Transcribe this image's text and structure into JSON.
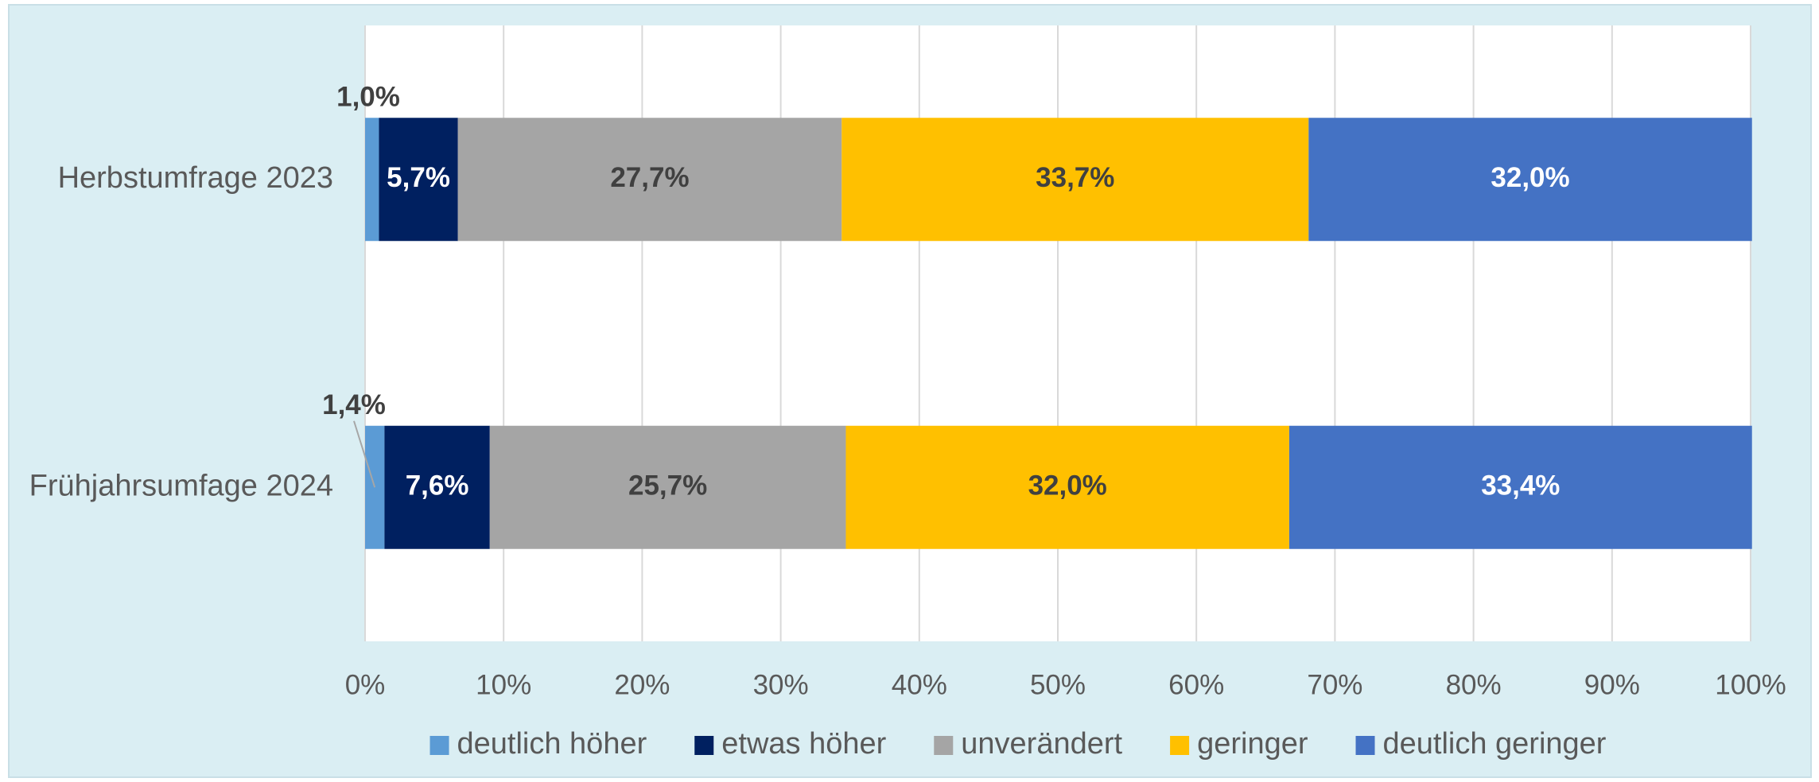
{
  "chart_data": {
    "type": "stacked-barh",
    "categories": [
      "Herbstumfrage 2023",
      "Frühjahrsumfage 2024"
    ],
    "series": [
      {
        "name": "deutlich höher",
        "color": "#5b9bd5",
        "label_color": "#404040",
        "values": [
          1.0,
          1.4
        ],
        "value_labels": [
          "1,0%",
          "1,4%"
        ]
      },
      {
        "name": "etwas höher",
        "color": "#002060",
        "label_color": "#ffffff",
        "values": [
          5.7,
          7.6
        ],
        "value_labels": [
          "5,7%",
          "7,6%"
        ]
      },
      {
        "name": "unverändert",
        "color": "#a5a5a5",
        "label_color": "#404040",
        "values": [
          27.7,
          25.7
        ],
        "value_labels": [
          "27,7%",
          "25,7%"
        ]
      },
      {
        "name": "geringer",
        "color": "#ffc000",
        "label_color": "#404040",
        "values": [
          33.7,
          32.0
        ],
        "value_labels": [
          "33,7%",
          "32,0%"
        ]
      },
      {
        "name": "deutlich geringer",
        "color": "#4472c4",
        "label_color": "#ffffff",
        "values": [
          32.0,
          33.4
        ],
        "value_labels": [
          "32,0%",
          "33,4%"
        ]
      }
    ],
    "xlim": [
      0,
      100
    ],
    "xticks": [
      {
        "value": 0,
        "label": "0%"
      },
      {
        "value": 10,
        "label": "10%"
      },
      {
        "value": 20,
        "label": "20%"
      },
      {
        "value": 30,
        "label": "30%"
      },
      {
        "value": 40,
        "label": "40%"
      },
      {
        "value": 50,
        "label": "50%"
      },
      {
        "value": 60,
        "label": "60%"
      },
      {
        "value": 70,
        "label": "70%"
      },
      {
        "value": 80,
        "label": "80%"
      },
      {
        "value": 90,
        "label": "90%"
      },
      {
        "value": 100,
        "label": "100%"
      }
    ],
    "grid": true,
    "legend": "bottom"
  }
}
